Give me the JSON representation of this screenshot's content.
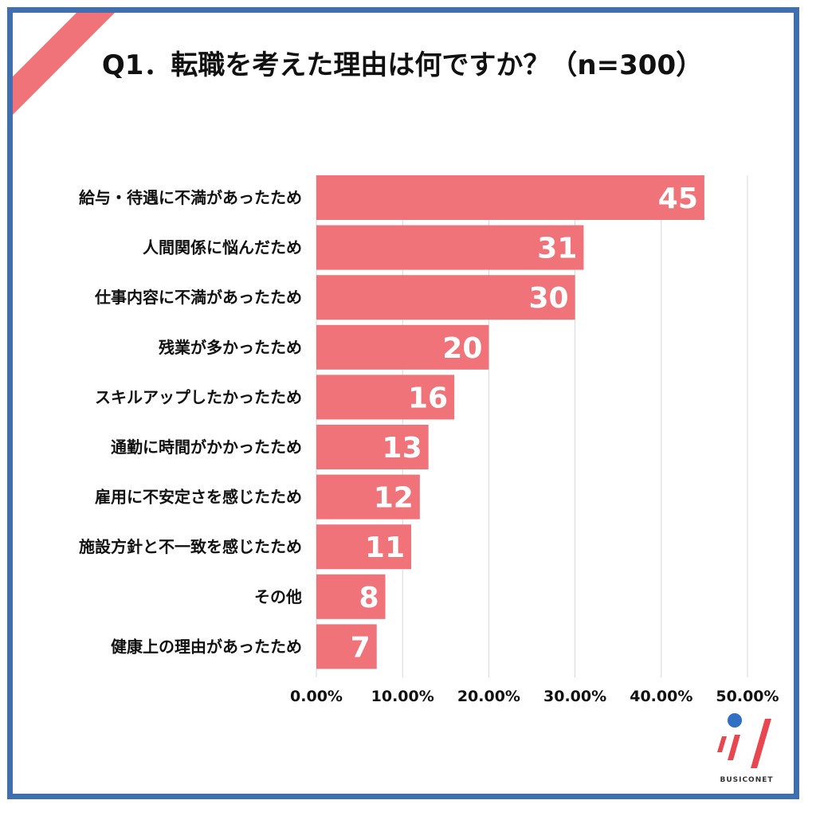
{
  "chart_data": {
    "type": "bar",
    "orientation": "horizontal",
    "title": "Q1．転職を考えた理由は何ですか？（n=300）",
    "categories": [
      "給与・待遇に不満があったため",
      "人間関係に悩んだため",
      "仕事内容に不満があったため",
      "残業が多かったため",
      "スキルアップしたかったため",
      "通勤に時間がかかったため",
      "雇用に不安定さを感じたため",
      "施設方針と不一致を感じたため",
      "その他",
      "健康上の理由があったため"
    ],
    "values": [
      45,
      31,
      30,
      20,
      16,
      13,
      12,
      11,
      8,
      7
    ],
    "xlim": [
      0,
      50
    ],
    "xticks": [
      "0.00%",
      "10.00%",
      "20.00%",
      "30.00%",
      "40.00%",
      "50.00%"
    ],
    "xticks_values": [
      0,
      10,
      20,
      30,
      40,
      50
    ],
    "grid": true,
    "bar_color": "#f0737a",
    "grid_color": "#d9d9d9"
  },
  "brand": {
    "name": "BUSICONET",
    "accent_red": "#e8474f",
    "accent_blue": "#2f6fc4"
  },
  "frame": {
    "border_color": "#3e6fb0",
    "ribbon_color": "#f0737a"
  }
}
